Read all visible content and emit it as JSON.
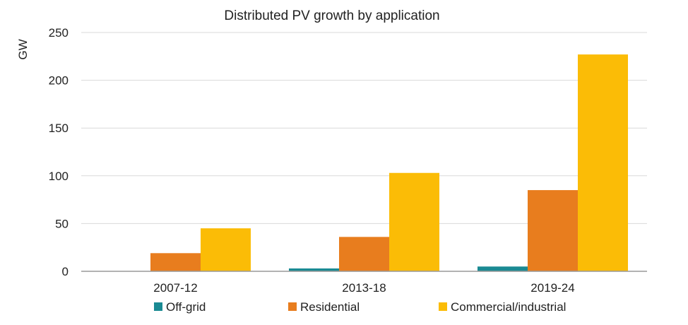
{
  "chart_data": {
    "type": "bar",
    "title": "Distributed PV growth by application",
    "xlabel": "",
    "ylabel": "GW",
    "categories": [
      "2007-12",
      "2013-18",
      "2019-24"
    ],
    "series": [
      {
        "name": "Off-grid",
        "color": "#1a8a93",
        "values": [
          0,
          3,
          5
        ]
      },
      {
        "name": "Residential",
        "color": "#e87d1e",
        "values": [
          19,
          36,
          85
        ]
      },
      {
        "name": "Commercial/industrial",
        "color": "#fbbc06",
        "values": [
          45,
          103,
          227
        ]
      }
    ],
    "ylim": [
      0,
      250
    ],
    "yticks": [
      0,
      50,
      100,
      150,
      200,
      250
    ],
    "grid": true,
    "legend_position": "bottom"
  }
}
